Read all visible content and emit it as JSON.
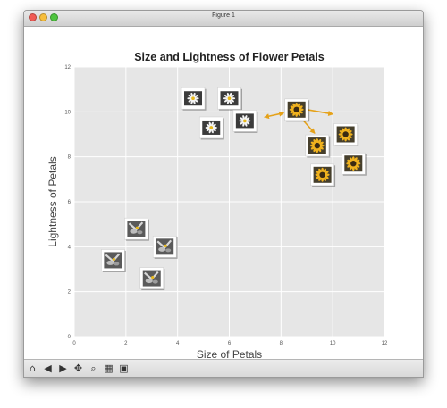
{
  "window": {
    "title": "Figure 1",
    "traffic_colors": [
      "#f15b55",
      "#f6bd3b",
      "#4fc43f"
    ]
  },
  "toolbar": {
    "buttons": [
      {
        "name": "home",
        "glyph": "⌂"
      },
      {
        "name": "back",
        "glyph": "◀"
      },
      {
        "name": "forward",
        "glyph": "▶"
      },
      {
        "name": "pan",
        "glyph": "✥"
      },
      {
        "name": "zoom",
        "glyph": "⌕"
      },
      {
        "name": "configure-subplots",
        "glyph": "▦"
      },
      {
        "name": "save",
        "glyph": "▣"
      }
    ]
  },
  "chart_data": {
    "type": "scatter",
    "title": "Size and Lightness of Flower Petals",
    "xlabel": "Size of Petals",
    "ylabel": "Lightness of Petals",
    "xlim": [
      0,
      12
    ],
    "ylim": [
      0,
      12
    ],
    "xticks": [
      "0",
      "2",
      "4",
      "6",
      "8",
      "10",
      "12"
    ],
    "yticks": [
      "0",
      "2",
      "4",
      "6",
      "8",
      "10",
      "12"
    ],
    "grid": true,
    "background": "#e6e6e6",
    "grid_color": "#ffffff",
    "arrow_color": "#e5a21a",
    "points": [
      {
        "x": 1.5,
        "y": 3.4,
        "kind": "grey"
      },
      {
        "x": 2.4,
        "y": 4.8,
        "kind": "grey"
      },
      {
        "x": 3.0,
        "y": 2.6,
        "kind": "grey"
      },
      {
        "x": 3.5,
        "y": 4.0,
        "kind": "grey"
      },
      {
        "x": 4.6,
        "y": 10.6,
        "kind": "daisy"
      },
      {
        "x": 5.3,
        "y": 9.3,
        "kind": "daisy"
      },
      {
        "x": 6.0,
        "y": 10.6,
        "kind": "daisy"
      },
      {
        "x": 6.6,
        "y": 9.6,
        "kind": "daisy"
      },
      {
        "x": 8.6,
        "y": 10.1,
        "kind": "sunflower"
      },
      {
        "x": 9.4,
        "y": 8.5,
        "kind": "sunflower"
      },
      {
        "x": 10.5,
        "y": 9.0,
        "kind": "sunflower"
      },
      {
        "x": 9.6,
        "y": 7.2,
        "kind": "sunflower"
      },
      {
        "x": 10.8,
        "y": 7.7,
        "kind": "sunflower"
      }
    ],
    "arrows": [
      {
        "from": [
          7.5,
          9.8
        ],
        "to": [
          8.1,
          9.95
        ]
      },
      {
        "from": [
          9.0,
          10.1
        ],
        "to": [
          10.0,
          9.9
        ]
      },
      {
        "from": [
          8.8,
          9.7
        ],
        "to": [
          9.3,
          9.05
        ]
      }
    ]
  }
}
